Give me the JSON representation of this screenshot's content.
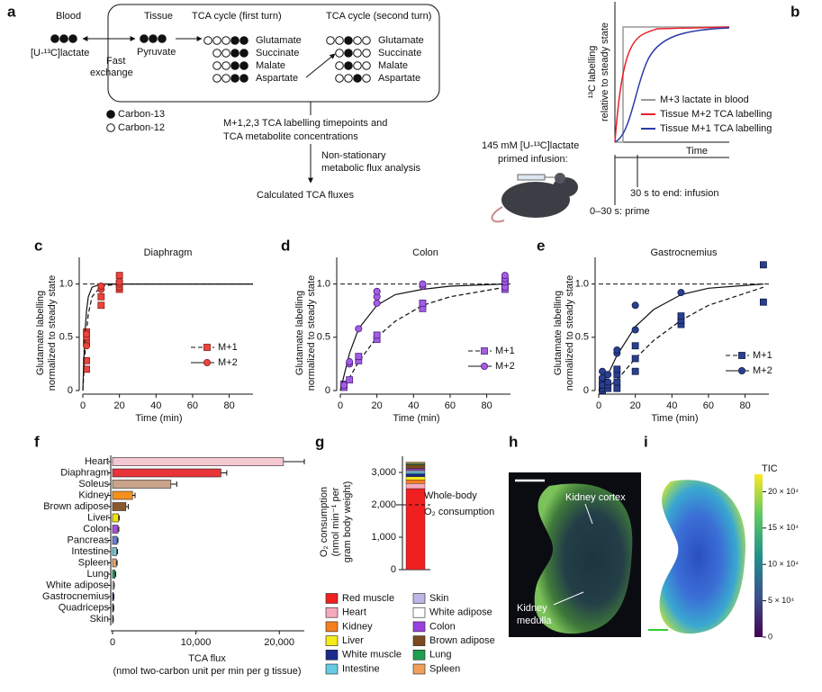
{
  "panel_labels": [
    "a",
    "b",
    "c",
    "d",
    "e",
    "f",
    "g",
    "h",
    "i"
  ],
  "diagram_a": {
    "blood": "Blood",
    "tissue": "Tissue",
    "tca_first": "TCA cycle (first turn)",
    "tca_second": "TCA cycle (second turn)",
    "lactate": "[U-¹³C]lactate",
    "pyruvate": "Pyruvate",
    "fast_exchange": [
      "Fast",
      "exchange"
    ],
    "metabolites_first": [
      "Glutamate",
      "Succinate",
      "Malate",
      "Aspartate"
    ],
    "metabolites_second": [
      "Glutamate",
      "Succinate",
      "Malate",
      "Aspartate"
    ],
    "legend": [
      "Carbon-13",
      "Carbon-12"
    ],
    "timepoints": [
      "M+1,2,3 TCA labelling timepoints and",
      "TCA metabolite concentrations"
    ],
    "analysis": [
      "Non-stationary",
      "metabolic flux analysis"
    ],
    "result": "Calculated TCA fluxes"
  },
  "diagram_b": {
    "ylabel": [
      "¹³C labelling",
      "relative to steady state"
    ],
    "xlabel": "Time",
    "legend": [
      "M+3 lactate in blood",
      "Tissue M+2 TCA labelling",
      "Tissue M+1 TCA labelling"
    ],
    "infusion": [
      "145 mM [U-¹³C]lactate",
      "primed infusion:"
    ],
    "phases": [
      "30 s to end: infusion",
      "0–30 s: prime"
    ]
  },
  "chart_data": [
    {
      "type": "scatter",
      "title": "Diaphragm",
      "xlabel": "Time (min)",
      "ylabel": [
        "Glutamate labelling",
        "normalized to steady state"
      ],
      "xlim": [
        0,
        93
      ],
      "ylim": [
        0,
        1.25
      ],
      "xticks": [
        0,
        20,
        40,
        60,
        80
      ],
      "yticks": [
        0,
        0.5,
        {
          "value": 1,
          "label": "1.0"
        }
      ],
      "reference_line": 1,
      "series": [
        {
          "name": "M+1",
          "color": "#e8453c",
          "edge_color": "#8a1d18",
          "marker": "square",
          "line_style": "dashed",
          "x": [
            2,
            2,
            2,
            2,
            10,
            10,
            20,
            20,
            20
          ],
          "values": [
            0.2,
            0.28,
            0.45,
            0.55,
            0.8,
            0.88,
            0.95,
            1.01,
            1.08
          ],
          "fit_x": [
            0,
            1,
            2,
            3,
            5,
            10,
            20,
            40,
            60,
            93
          ],
          "fit_values": [
            0,
            0.3,
            0.55,
            0.72,
            0.88,
            0.98,
            1,
            1,
            1,
            1
          ]
        },
        {
          "name": "M+2",
          "color": "#e8453c",
          "edge_color": "#8a1d18",
          "marker": "circle",
          "line_style": "solid",
          "x": [
            2,
            2,
            2,
            10,
            10,
            20,
            20,
            20
          ],
          "values": [
            0.42,
            0.5,
            0.53,
            0.95,
            0.98,
            0.97,
            1.0,
            1.02
          ],
          "fit_x": [
            0,
            1,
            2,
            3,
            5,
            10,
            20,
            40,
            60,
            93
          ],
          "fit_values": [
            0,
            0.5,
            0.75,
            0.88,
            0.97,
            1,
            1,
            1,
            1,
            1
          ]
        }
      ]
    },
    {
      "type": "scatter",
      "title": "Colon",
      "xlabel": "Time (min)",
      "ylabel": [
        "Glutamate labelling",
        "normalized to steady state"
      ],
      "xlim": [
        0,
        93
      ],
      "ylim": [
        0,
        1.25
      ],
      "xticks": [
        0,
        20,
        40,
        60,
        80
      ],
      "yticks": [
        0,
        0.5,
        {
          "value": 1,
          "label": "1.0"
        }
      ],
      "reference_line": 1,
      "series": [
        {
          "name": "M+1",
          "color": "#a45ee5",
          "edge_color": "#4b1d7a",
          "marker": "square",
          "line_style": "dashed",
          "x": [
            2,
            2,
            5,
            10,
            10,
            20,
            20,
            45,
            45,
            90,
            90,
            90
          ],
          "values": [
            0.03,
            0.06,
            0.1,
            0.28,
            0.32,
            0.48,
            0.52,
            0.77,
            0.82,
            0.95,
            1.0,
            1.03
          ],
          "fit_x": [
            0,
            5,
            10,
            20,
            30,
            45,
            60,
            90
          ],
          "fit_values": [
            0,
            0.12,
            0.27,
            0.5,
            0.65,
            0.8,
            0.88,
            0.97
          ]
        },
        {
          "name": "M+2",
          "color": "#a45ee5",
          "edge_color": "#4b1d7a",
          "marker": "circle",
          "line_style": "solid",
          "x": [
            2,
            5,
            5,
            10,
            20,
            20,
            20,
            45,
            45,
            90,
            90,
            90,
            90
          ],
          "values": [
            0.05,
            0.25,
            0.27,
            0.58,
            0.82,
            0.88,
            0.93,
            0.98,
            1.0,
            0.97,
            1.02,
            1.05,
            1.08
          ],
          "fit_x": [
            0,
            5,
            10,
            20,
            30,
            45,
            60,
            90
          ],
          "fit_values": [
            0,
            0.35,
            0.58,
            0.8,
            0.9,
            0.95,
            0.98,
            1.0
          ]
        }
      ]
    },
    {
      "type": "scatter",
      "title": "Gastrocnemius",
      "xlabel": "Time (min)",
      "ylabel": [
        "Glutamate labelling",
        "normalized to steady state"
      ],
      "xlim": [
        0,
        93
      ],
      "ylim": [
        0,
        1.25
      ],
      "xticks": [
        0,
        20,
        40,
        60,
        80
      ],
      "yticks": [
        0,
        0.5,
        {
          "value": 1,
          "label": "1.0"
        }
      ],
      "reference_line": 1,
      "series": [
        {
          "name": "M+1",
          "color": "#2a3f8f",
          "edge_color": "#0f1a45",
          "marker": "square",
          "line_style": "dashed",
          "x": [
            2,
            2,
            2,
            2,
            5,
            10,
            10,
            10,
            10,
            20,
            20,
            20,
            45,
            45,
            45,
            90,
            90
          ],
          "values": [
            0,
            0.02,
            0.05,
            0.1,
            0.02,
            0.02,
            0.08,
            0.15,
            0.2,
            0.18,
            0.3,
            0.42,
            0.62,
            0.66,
            0.7,
            0.83,
            1.18
          ],
          "fit_x": [
            0,
            5,
            10,
            20,
            30,
            45,
            60,
            90
          ],
          "fit_values": [
            0,
            0.03,
            0.1,
            0.3,
            0.47,
            0.66,
            0.8,
            0.97
          ]
        },
        {
          "name": "M+2",
          "color": "#2a3f8f",
          "edge_color": "#0f1a45",
          "marker": "circle",
          "line_style": "solid",
          "x": [
            2,
            2,
            2,
            5,
            5,
            5,
            10,
            10,
            20,
            20,
            45
          ],
          "values": [
            0.05,
            0.12,
            0.18,
            0.05,
            0.08,
            0.15,
            0.35,
            0.38,
            0.57,
            0.8,
            0.92
          ],
          "fit_x": [
            0,
            5,
            10,
            20,
            30,
            45,
            60,
            90
          ],
          "fit_values": [
            0,
            0.15,
            0.33,
            0.6,
            0.76,
            0.9,
            0.96,
            1.0
          ]
        }
      ]
    },
    {
      "type": "hbar",
      "xlabel": [
        "TCA flux",
        "(nmol two-carbon unit per min per g tissue)"
      ],
      "categories": [
        "Heart",
        "Diaphragm",
        "Soleus",
        "Kidney",
        "Brown adipose",
        "Liver",
        "Colon",
        "Pancreas",
        "Intestine",
        "Spleen",
        "Lung",
        "White adipose",
        "Gastrocnemius",
        "Quadriceps",
        "Skin"
      ],
      "values": [
        20500,
        13000,
        7000,
        2400,
        1600,
        700,
        650,
        550,
        500,
        450,
        300,
        150,
        120,
        100,
        60
      ],
      "errors": [
        2500,
        700,
        700,
        300,
        300,
        100,
        100,
        100,
        100,
        100,
        80,
        50,
        40,
        40,
        30
      ],
      "colors": [
        "#f4c6d0",
        "#e8353a",
        "#c9a28a",
        "#f5901e",
        "#8b5a2b",
        "#f2e600",
        "#a64fd8",
        "#6a7fd0",
        "#6fc6d8",
        "#f0a060",
        "#1aa05a",
        "#ffffff",
        "#1f2a80",
        "#1f2a80",
        "#b9b4e0"
      ],
      "xlim": [
        0,
        23000
      ],
      "xticks": [
        0,
        {
          "value": 10000,
          "label": "10,000"
        },
        {
          "value": 20000,
          "label": "20,000"
        }
      ]
    },
    {
      "type": "stacked_bar",
      "ylabel": [
        "O₂ consumption",
        "(nmol min⁻¹ per",
        "gram body weight)"
      ],
      "ylim": [
        0,
        3500
      ],
      "yticks": [
        0,
        {
          "value": 1000,
          "label": "1,000"
        },
        {
          "value": 2000,
          "label": "2,000"
        },
        {
          "value": 3000,
          "label": "3,000"
        }
      ],
      "annotation": {
        "text": [
          "Whole-body",
          "O₂ consumption"
        ],
        "value": 2000
      },
      "series": [
        {
          "name": "Red muscle",
          "color": "#f02020",
          "values": [
            2500
          ]
        },
        {
          "name": "Heart",
          "color": "#f5a9bc",
          "values": [
            160
          ]
        },
        {
          "name": "Kidney",
          "color": "#f57f20",
          "values": [
            110
          ]
        },
        {
          "name": "Liver",
          "color": "#f4ea1c",
          "values": [
            100
          ]
        },
        {
          "name": "White muscle",
          "color": "#1c2a8c",
          "values": [
            90
          ]
        },
        {
          "name": "Intestine",
          "color": "#66cbe0",
          "values": [
            60
          ]
        },
        {
          "name": "Skin",
          "color": "#bdb6e6",
          "values": [
            40
          ]
        },
        {
          "name": "White adipose",
          "color": "#ffffff",
          "values": [
            20
          ]
        },
        {
          "name": "Colon",
          "color": "#9a3fe0",
          "values": [
            40
          ]
        },
        {
          "name": "Brown adipose",
          "color": "#7b4a1e",
          "values": [
            120
          ]
        },
        {
          "name": "Lung",
          "color": "#1f9e4f",
          "values": [
            40
          ]
        },
        {
          "name": "Spleen",
          "color": "#f0a05a",
          "values": [
            40
          ]
        }
      ]
    }
  ],
  "image_h": {
    "cortex": "Kidney cortex",
    "medulla": [
      "Kidney",
      "medulla"
    ]
  },
  "image_i": {
    "colorbar": {
      "label": "TIC",
      "lim": [
        0,
        224000
      ],
      "ticks": [
        0,
        {
          "value": 50000,
          "label": "5 × 10⁴"
        },
        {
          "value": 100000,
          "label": "10 × 10⁴"
        },
        {
          "value": 150000,
          "label": "15 × 10⁴"
        },
        {
          "value": 200000,
          "label": "20 × 10⁴"
        }
      ]
    }
  }
}
